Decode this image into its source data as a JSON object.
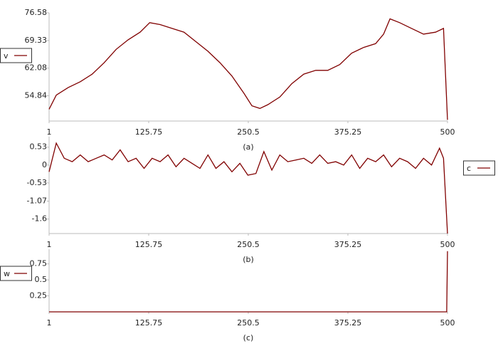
{
  "chart_data": [
    {
      "type": "line",
      "caption": "(a)",
      "legend": "left",
      "xlim": [
        1,
        500
      ],
      "xticks": [
        1,
        125.75,
        250.5,
        375.25,
        500
      ],
      "ylim": [
        48.2,
        76.58
      ],
      "yticks": [
        54.84,
        62.08,
        69.33,
        76.58
      ],
      "x": [
        1,
        10,
        25,
        40,
        55,
        70,
        85,
        100,
        115,
        127,
        140,
        155,
        170,
        185,
        200,
        215,
        230,
        245,
        255,
        265,
        275,
        290,
        305,
        320,
        335,
        350,
        365,
        380,
        395,
        410,
        420,
        428,
        440,
        455,
        470,
        485,
        495,
        500
      ],
      "series": [
        {
          "name": "v",
          "color": "#800000",
          "values": [
            51.3,
            55,
            57,
            58.5,
            60.5,
            63.5,
            67,
            69.5,
            71.5,
            74,
            73.5,
            72.5,
            71.5,
            69,
            66.5,
            63.5,
            60,
            55.5,
            52.2,
            51.5,
            52.5,
            54.5,
            58,
            60.5,
            61.5,
            61.5,
            63,
            66,
            67.5,
            68.5,
            71,
            75,
            74,
            72.5,
            71,
            71.5,
            72.5,
            48.5
          ]
        }
      ]
    },
    {
      "type": "line",
      "caption": "(b)",
      "legend": "right",
      "xlim": [
        1,
        500
      ],
      "xticks": [
        1,
        125.75,
        250.5,
        375.25,
        500
      ],
      "ylim": [
        -2.03,
        0.84
      ],
      "yticks": [
        0.53,
        0,
        -0.53,
        -1.07,
        -1.6
      ],
      "x": [
        1,
        10,
        20,
        30,
        40,
        50,
        60,
        70,
        80,
        90,
        100,
        110,
        120,
        130,
        140,
        150,
        160,
        170,
        180,
        190,
        200,
        210,
        220,
        230,
        240,
        250,
        260,
        270,
        280,
        290,
        300,
        310,
        320,
        330,
        340,
        350,
        360,
        370,
        380,
        390,
        400,
        410,
        420,
        430,
        440,
        450,
        460,
        470,
        480,
        490,
        495,
        500
      ],
      "series": [
        {
          "name": "c",
          "color": "#800000",
          "values": [
            -0.2,
            0.65,
            0.2,
            0.1,
            0.3,
            0.1,
            0.2,
            0.3,
            0.15,
            0.45,
            0.1,
            0.2,
            -0.1,
            0.2,
            0.1,
            0.3,
            -0.05,
            0.2,
            0.05,
            -0.1,
            0.3,
            -0.1,
            0.1,
            -0.2,
            0.05,
            -0.3,
            -0.25,
            0.4,
            -0.15,
            0.3,
            0.1,
            0.15,
            0.2,
            0.05,
            0.3,
            0.05,
            0.1,
            0,
            0.3,
            -0.1,
            0.2,
            0.1,
            0.3,
            -0.05,
            0.2,
            0.1,
            -0.1,
            0.2,
            0,
            0.5,
            0.2,
            -2.03
          ]
        }
      ]
    },
    {
      "type": "line",
      "caption": "(c)",
      "legend": "left",
      "xlim": [
        1,
        500
      ],
      "xticks": [
        1,
        125.75,
        250.5,
        375.25,
        500
      ],
      "ylim": [
        0,
        0.98
      ],
      "yticks": [
        0.25,
        0.5,
        0.75
      ],
      "x": [
        1,
        100,
        200,
        300,
        400,
        499,
        500
      ],
      "series": [
        {
          "name": "w",
          "color": "#800000",
          "values": [
            0,
            0,
            0,
            0,
            0,
            0,
            0.95
          ]
        }
      ]
    }
  ]
}
